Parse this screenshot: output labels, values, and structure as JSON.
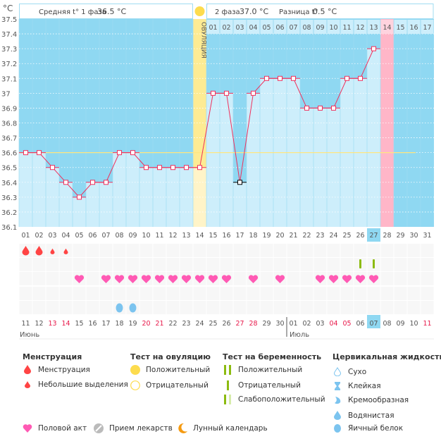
{
  "header": {
    "unit": "°C",
    "phase1_label": "Средняя t° 1 фаза",
    "phase1_value": "36.5 °C",
    "phase2_label": "2 фаза",
    "phase2_value": "37.0 °C",
    "diff_label": "Разница t°",
    "diff_value": "0.5 °C",
    "ovulation_label": "ОВУЛЯЦИЯ"
  },
  "colors": {
    "bg_dark": "#8fd8f2",
    "bg_light": "#cdeefb",
    "line": "#f0305c",
    "coverline": "#ffe680",
    "ovulation": "#fdeb93",
    "expected_period": "#ffb6c8",
    "weekend": "#e8184a",
    "highlight": "#8fd8f2"
  },
  "chart_data": {
    "type": "line",
    "ylim": [
      36.1,
      37.5
    ],
    "yticks": [
      "37.5",
      "37.4",
      "37.3",
      "37.2",
      "37.1",
      "37",
      "36.9",
      "36.8",
      "36.7",
      "36.6",
      "36.5",
      "36.4",
      "36.3",
      "36.2",
      "36.1"
    ],
    "cycle_days": [
      "01",
      "02",
      "03",
      "04",
      "05",
      "06",
      "07",
      "08",
      "09",
      "10",
      "11",
      "12",
      "13",
      "14",
      "15",
      "16",
      "17",
      "18",
      "19",
      "20",
      "21",
      "22",
      "23",
      "24",
      "25",
      "26",
      "27",
      "28",
      "29",
      "30",
      "31"
    ],
    "temperatures": [
      36.6,
      36.6,
      36.5,
      36.4,
      36.3,
      36.4,
      36.4,
      36.6,
      36.6,
      36.5,
      36.5,
      36.5,
      36.5,
      36.5,
      37.0,
      37.0,
      36.4,
      37.0,
      37.1,
      37.1,
      37.1,
      36.9,
      36.9,
      36.9,
      37.1,
      37.1,
      37.3,
      null,
      null,
      null,
      null
    ],
    "excluded_day": 17,
    "coverline": 36.6,
    "ovulation_day": 14,
    "luteal_days": [
      "01",
      "02",
      "03",
      "04",
      "05",
      "06",
      "07",
      "08",
      "09",
      "10",
      "11",
      "12",
      "13",
      "14",
      "15",
      "16",
      "17"
    ],
    "expected_period_day": 28,
    "current_day": 27
  },
  "dates": [
    "11",
    "12",
    "13",
    "14",
    "15",
    "16",
    "17",
    "18",
    "19",
    "20",
    "21",
    "22",
    "23",
    "24",
    "25",
    "26",
    "27",
    "28",
    "29",
    "30",
    "01",
    "02",
    "03",
    "04",
    "05",
    "06",
    "07",
    "08",
    "09",
    "10",
    "11"
  ],
  "weekend_idx": [
    2,
    3,
    9,
    10,
    16,
    17,
    23,
    24,
    30
  ],
  "current_date_idx": 26,
  "months": [
    "Июнь",
    "Июль"
  ],
  "marks": {
    "menstruation_heavy": [
      1,
      2
    ],
    "menstruation_light": [
      3,
      4
    ],
    "pregnancy_negative": [
      26,
      27
    ],
    "sex": [
      5,
      7,
      8,
      9,
      10,
      11,
      12,
      13,
      14,
      15,
      16,
      18,
      20,
      23,
      24,
      25,
      26,
      27
    ],
    "egg_white": [
      8,
      9
    ]
  },
  "legend": {
    "menstruation": {
      "title": "Менструация",
      "items": [
        "Менструация",
        "Небольшие выделения"
      ]
    },
    "ovulation_test": {
      "title": "Тест на овуляцию",
      "items": [
        "Положительный",
        "Отрицательный"
      ]
    },
    "pregnancy_test": {
      "title": "Тест на беременность",
      "items": [
        "Положительный",
        "Отрицательный",
        "Слабоположительный"
      ]
    },
    "cervical": {
      "title": "Цервикальная жидкость",
      "items": [
        "Сухо",
        "Клейкая",
        "Кремообразная",
        "Водянистая",
        "Яичный белок"
      ]
    },
    "other": [
      "Половой акт",
      "Прием лекарств",
      "Лунный календарь"
    ]
  }
}
